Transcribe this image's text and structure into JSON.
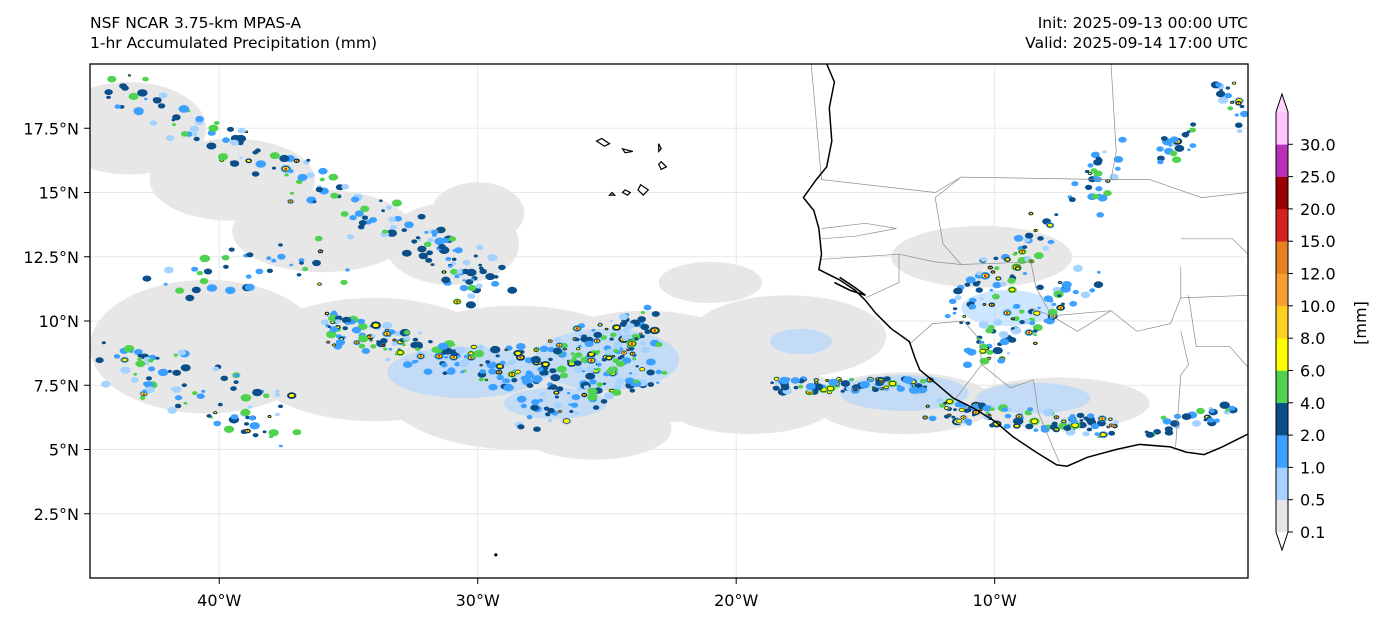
{
  "header": {
    "model": "NSF NCAR 3.75-km MPAS-A",
    "field": "1-hr Accumulated Precipitation (mm)",
    "init": "Init: 2025-09-13 00:00 UTC",
    "valid": "Valid: 2025-09-14 17:00 UTC"
  },
  "axes": {
    "lon_labels": [
      {
        "text": "40°W",
        "lon": -40
      },
      {
        "text": "30°W",
        "lon": -30
      },
      {
        "text": "20°W",
        "lon": -20
      },
      {
        "text": "10°W",
        "lon": -10
      }
    ],
    "lat_labels": [
      {
        "text": "17.5°N",
        "lat": 17.5
      },
      {
        "text": "15°N",
        "lat": 15
      },
      {
        "text": "12.5°N",
        "lat": 12.5
      },
      {
        "text": "10°N",
        "lat": 10
      },
      {
        "text": "7.5°N",
        "lat": 7.5
      },
      {
        "text": "5°N",
        "lat": 5
      },
      {
        "text": "2.5°N",
        "lat": 2.5
      }
    ],
    "extent": {
      "lon_min": -45,
      "lon_max": -0.2,
      "lat_min": 0,
      "lat_max": 20
    }
  },
  "colorbar": {
    "unit_label": "[mm]",
    "levels": [
      "0.1",
      "0.5",
      "1.0",
      "2.0",
      "4.0",
      "6.0",
      "8.0",
      "10.0",
      "12.0",
      "15.0",
      "20.0",
      "25.0",
      "30.0"
    ],
    "colors": [
      "#e6e6e6",
      "#a6d2ff",
      "#3ba0ff",
      "#0a4f8a",
      "#4fd24f",
      "#ffff00",
      "#ffd020",
      "#f5a030",
      "#e87f20",
      "#d42020",
      "#9b0000",
      "#b830b8",
      "#ffc4ff"
    ],
    "extend_low_color": "#ffffff",
    "extend_high_color": "#ffd4ff"
  },
  "colors": {
    "coast": "#000000",
    "border": "#8c8c8c",
    "grid": "#e8e8e8"
  }
}
